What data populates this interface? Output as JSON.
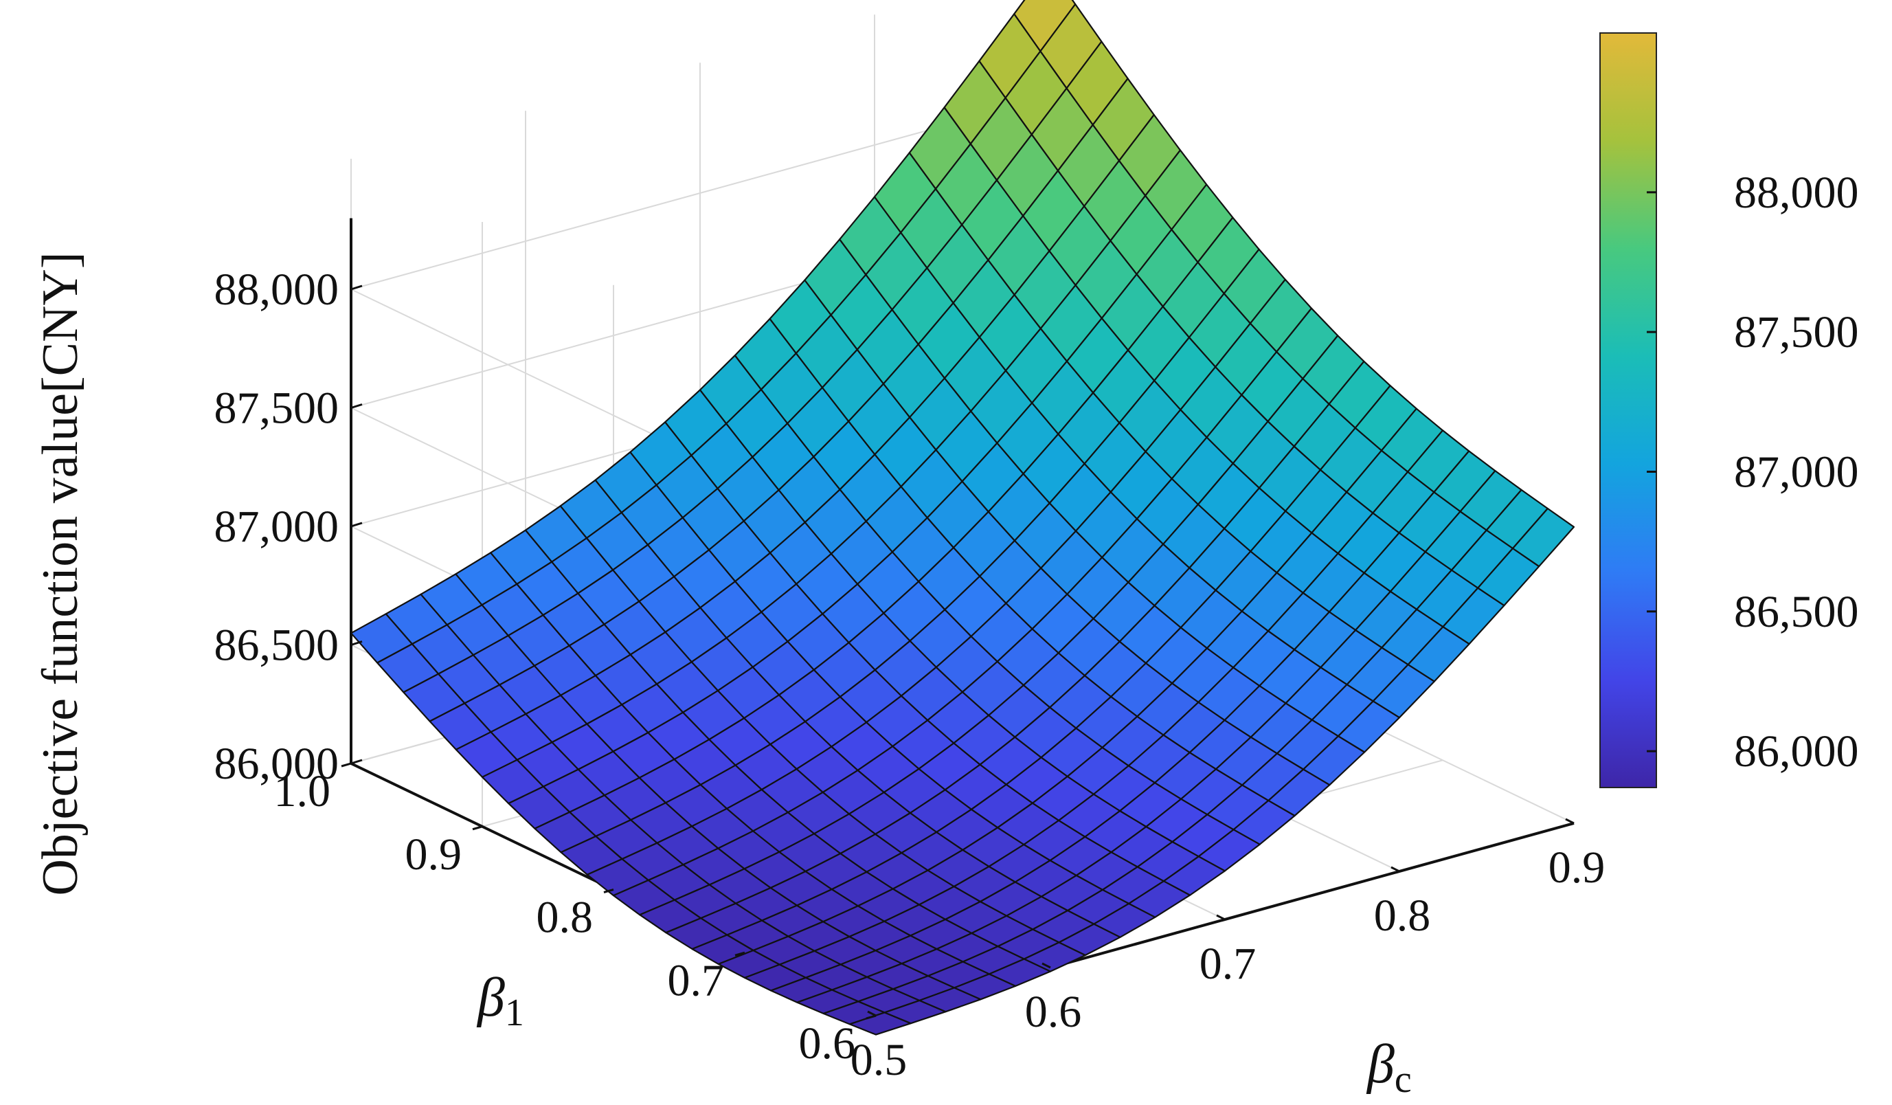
{
  "chart_data": {
    "type": "surface",
    "zlabel": "Objective function value[CNY]",
    "xlabel": "β",
    "xlabel_sub": "c",
    "ylabel": "β",
    "ylabel_sub": "1",
    "x_axis_name": "beta_c",
    "y_axis_name": "beta_1",
    "xlim": [
      0.5,
      0.9
    ],
    "ylim": [
      0.6,
      1.0
    ],
    "zlim": [
      86000,
      88000
    ],
    "x_ticks": [
      0.5,
      0.6,
      0.7,
      0.8,
      0.9
    ],
    "x_tick_labels": [
      "0.5",
      "0.6",
      "0.7",
      "0.8",
      "0.9"
    ],
    "y_ticks": [
      0.6,
      0.7,
      0.8,
      0.9,
      1.0
    ],
    "y_tick_labels": [
      "0.6",
      "0.7",
      "0.8",
      "0.9",
      "1.0"
    ],
    "z_ticks": [
      86000,
      86500,
      87000,
      87500,
      88000
    ],
    "z_tick_labels": [
      "86,000",
      "86,500",
      "87,000",
      "87,500",
      "88,000"
    ],
    "corner_values": [
      {
        "beta_c": 0.5,
        "beta_1": 0.6,
        "value": 85920
      },
      {
        "beta_c": 0.9,
        "beta_1": 0.6,
        "value": 87250
      },
      {
        "beta_c": 0.5,
        "beta_1": 1.0,
        "value": 86550
      },
      {
        "beta_c": 0.9,
        "beta_1": 1.0,
        "value": 88550
      }
    ],
    "grid_resolution": 21,
    "colormap": [
      "#3e26a8",
      "#4245e8",
      "#2f7bf5",
      "#13a4de",
      "#1bbdb7",
      "#48c97f",
      "#a5c23d",
      "#e2b93a"
    ],
    "colorbar": {
      "range": [
        85870,
        88570
      ],
      "ticks": [
        86000,
        86500,
        87000,
        87500,
        88000
      ],
      "tick_labels": [
        "86,000",
        "86,500",
        "87,000",
        "87,500",
        "88,000"
      ]
    },
    "grid": true
  }
}
